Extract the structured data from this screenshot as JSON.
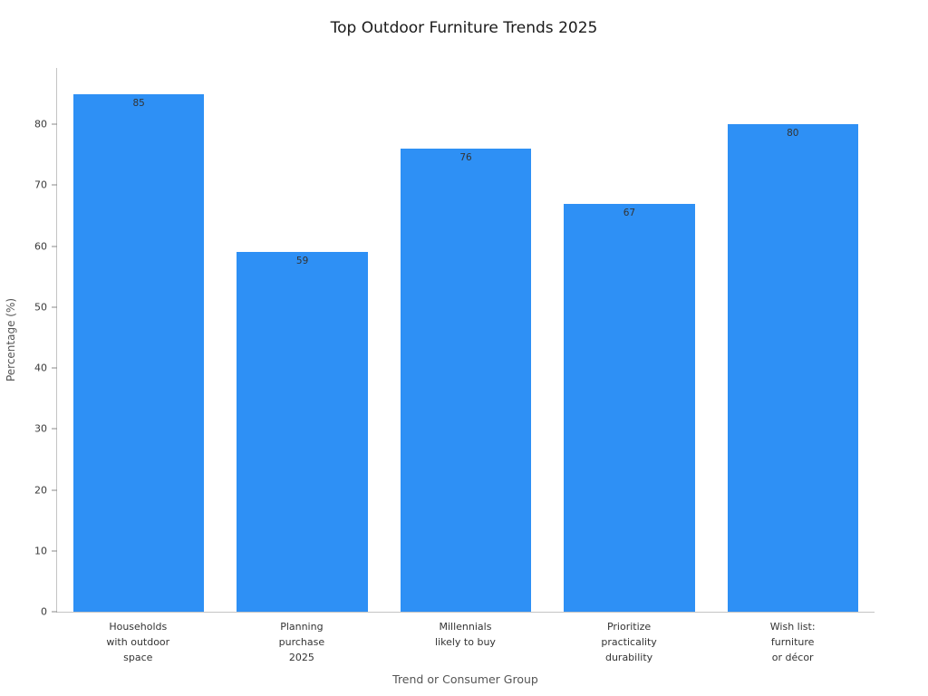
{
  "chart_data": {
    "type": "bar",
    "title": "Top Outdoor Furniture Trends 2025",
    "xlabel": "Trend or Consumer Group",
    "ylabel": "Percentage (%)",
    "categories": [
      "Households\nwith outdoor\nspace",
      "Planning\npurchase\n2025",
      "Millennials\nlikely to buy",
      "Prioritize\npracticality\ndurability",
      "Wish list:\nfurniture\nor décor"
    ],
    "values": [
      85,
      59,
      76,
      67,
      80
    ],
    "yticks": [
      0,
      10,
      20,
      30,
      40,
      50,
      60,
      70,
      80
    ],
    "ylim": [
      0,
      89.25
    ],
    "bar_color": "#2e90f5",
    "value_label_color": "#333333",
    "grid": false,
    "legend": null
  }
}
